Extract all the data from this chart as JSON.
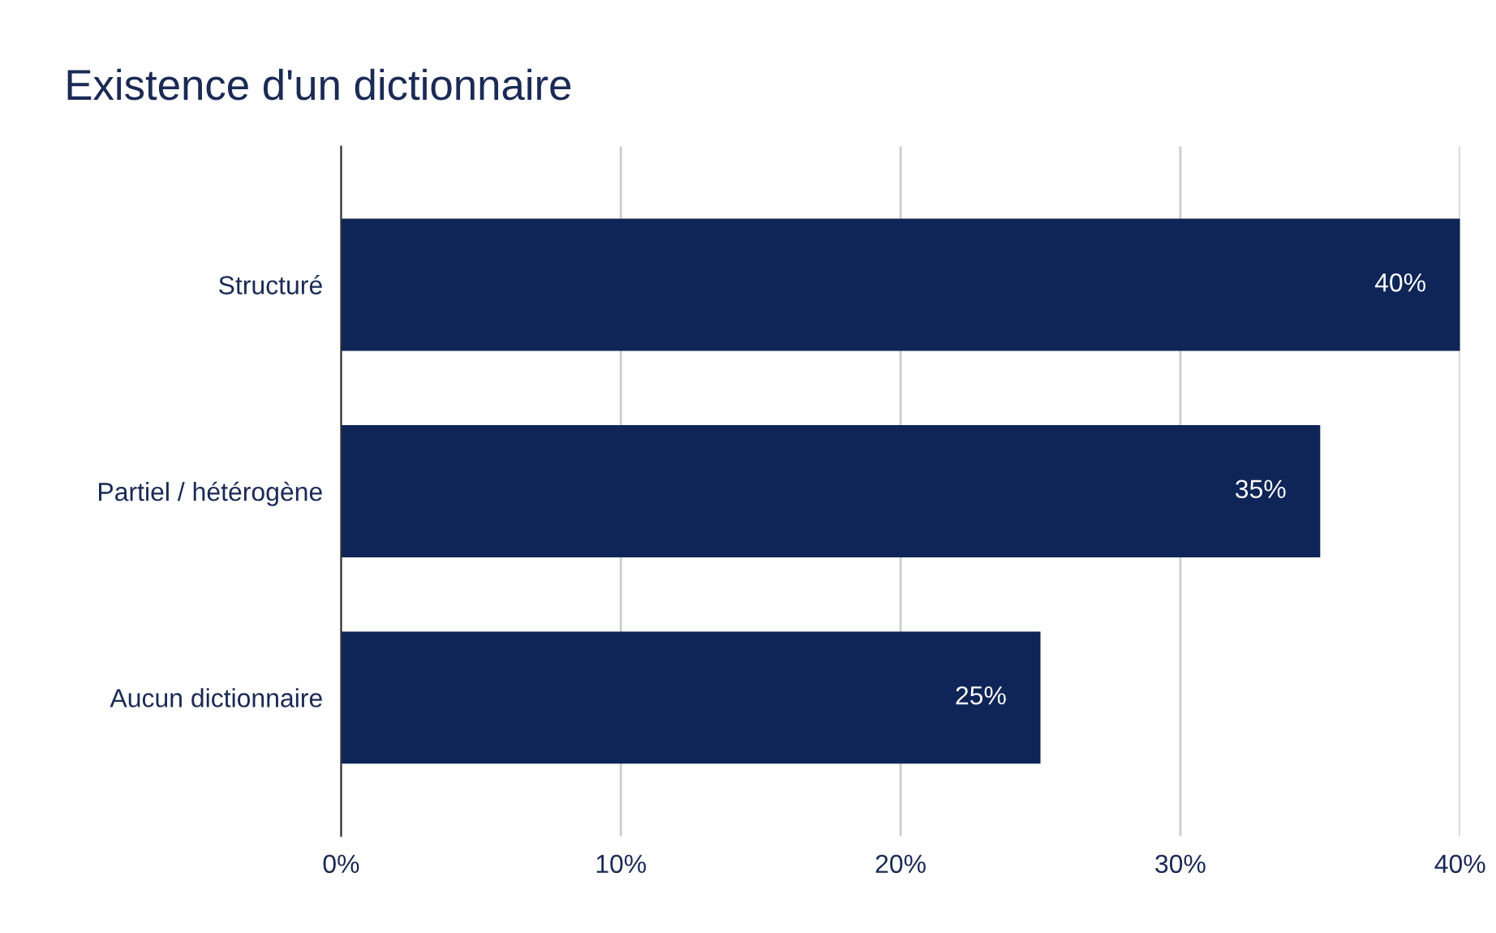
{
  "chart_data": {
    "type": "bar",
    "orientation": "horizontal",
    "title": "Existence d'un dictionnaire",
    "categories": [
      "Structuré",
      "Partiel / hétérogène",
      "Aucun dictionnaire"
    ],
    "values": [
      40,
      35,
      25
    ],
    "color": "#0f2557",
    "value_labels": [
      "40%",
      "35%",
      "25%"
    ],
    "xlim": [
      0,
      40
    ],
    "xticks": [
      {
        "value": 0,
        "label": "0%"
      },
      {
        "value": 10,
        "label": "10%"
      },
      {
        "value": 20,
        "label": "20%"
      },
      {
        "value": 30,
        "label": "30%"
      },
      {
        "value": 40,
        "label": "40%"
      }
    ],
    "grid": "x",
    "legend": false
  }
}
